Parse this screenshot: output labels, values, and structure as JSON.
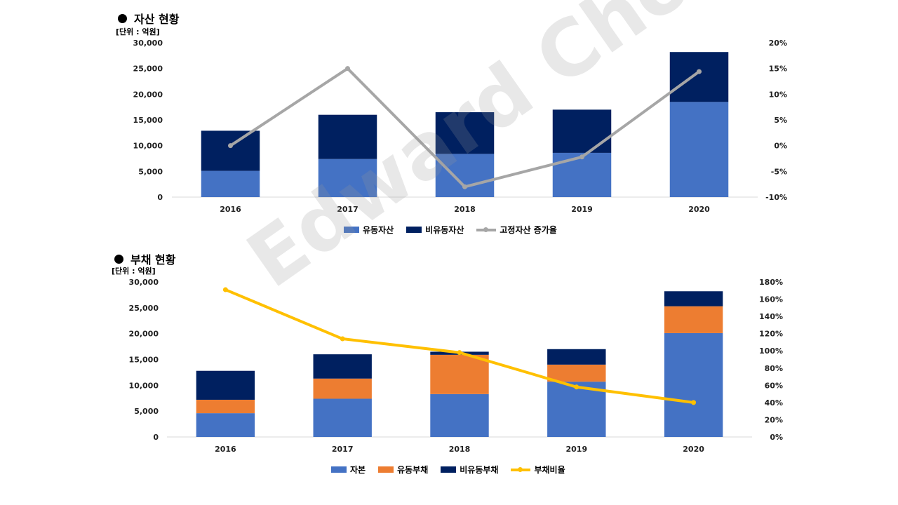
{
  "watermark": "Edward Choi",
  "colors": {
    "blue": "#4472C4",
    "navy": "#002060",
    "orange": "#ED7D31",
    "gray": "#A6A6A6",
    "yellow": "#FFC000",
    "gridline": "#D9D9D9"
  },
  "asset_section": {
    "title": "자산 현황",
    "unit": "[단위 : 억원]"
  },
  "debt_section": {
    "title": "부채 현황",
    "unit": "[단위 : 억원]"
  },
  "chart_data": [
    {
      "type": "bar",
      "stacked": true,
      "title": "자산 현황",
      "categories": [
        "2016",
        "2017",
        "2018",
        "2019",
        "2020"
      ],
      "ylim": [
        0,
        30000
      ],
      "yticks": [
        "0",
        "5,000",
        "10,000",
        "15,000",
        "20,000",
        "25,000",
        "30,000"
      ],
      "y2lim": [
        -10,
        20
      ],
      "y2ticks": [
        "-10%",
        "-5%",
        "0%",
        "5%",
        "10%",
        "15%",
        "20%"
      ],
      "series": [
        {
          "name": "유동자산",
          "type": "bar",
          "color": "#4472C4",
          "values": [
            5100,
            7400,
            8400,
            8600,
            18500
          ]
        },
        {
          "name": "비유동자산",
          "type": "bar",
          "color": "#002060",
          "values": [
            7800,
            8600,
            8100,
            8400,
            9700
          ]
        },
        {
          "name": "고정자산 증가율",
          "type": "line",
          "axis": "right",
          "color": "#A6A6A6",
          "values": [
            0,
            15,
            -8,
            -2.2,
            14.4
          ]
        }
      ],
      "legend": "bottom",
      "grid": false
    },
    {
      "type": "bar",
      "stacked": true,
      "title": "부채 현황",
      "categories": [
        "2016",
        "2017",
        "2018",
        "2019",
        "2020"
      ],
      "ylim": [
        0,
        30000
      ],
      "yticks": [
        "0",
        "5,000",
        "10,000",
        "15,000",
        "20,000",
        "25,000",
        "30,000"
      ],
      "y2lim": [
        0,
        180
      ],
      "y2ticks": [
        "0%",
        "20%",
        "40%",
        "60%",
        "80%",
        "100%",
        "120%",
        "140%",
        "160%",
        "180%"
      ],
      "series": [
        {
          "name": "자본",
          "type": "bar",
          "color": "#4472C4",
          "values": [
            4600,
            7400,
            8300,
            10700,
            20100
          ]
        },
        {
          "name": "유동부채",
          "type": "bar",
          "color": "#ED7D31",
          "values": [
            2600,
            3900,
            7600,
            3300,
            5200
          ]
        },
        {
          "name": "비유동부채",
          "type": "bar",
          "color": "#002060",
          "values": [
            5600,
            4700,
            600,
            3000,
            2900
          ]
        },
        {
          "name": "부채비율",
          "type": "line",
          "axis": "right",
          "color": "#FFC000",
          "values": [
            171,
            114,
            98,
            58,
            40
          ]
        }
      ],
      "legend": "bottom",
      "grid": false
    }
  ]
}
